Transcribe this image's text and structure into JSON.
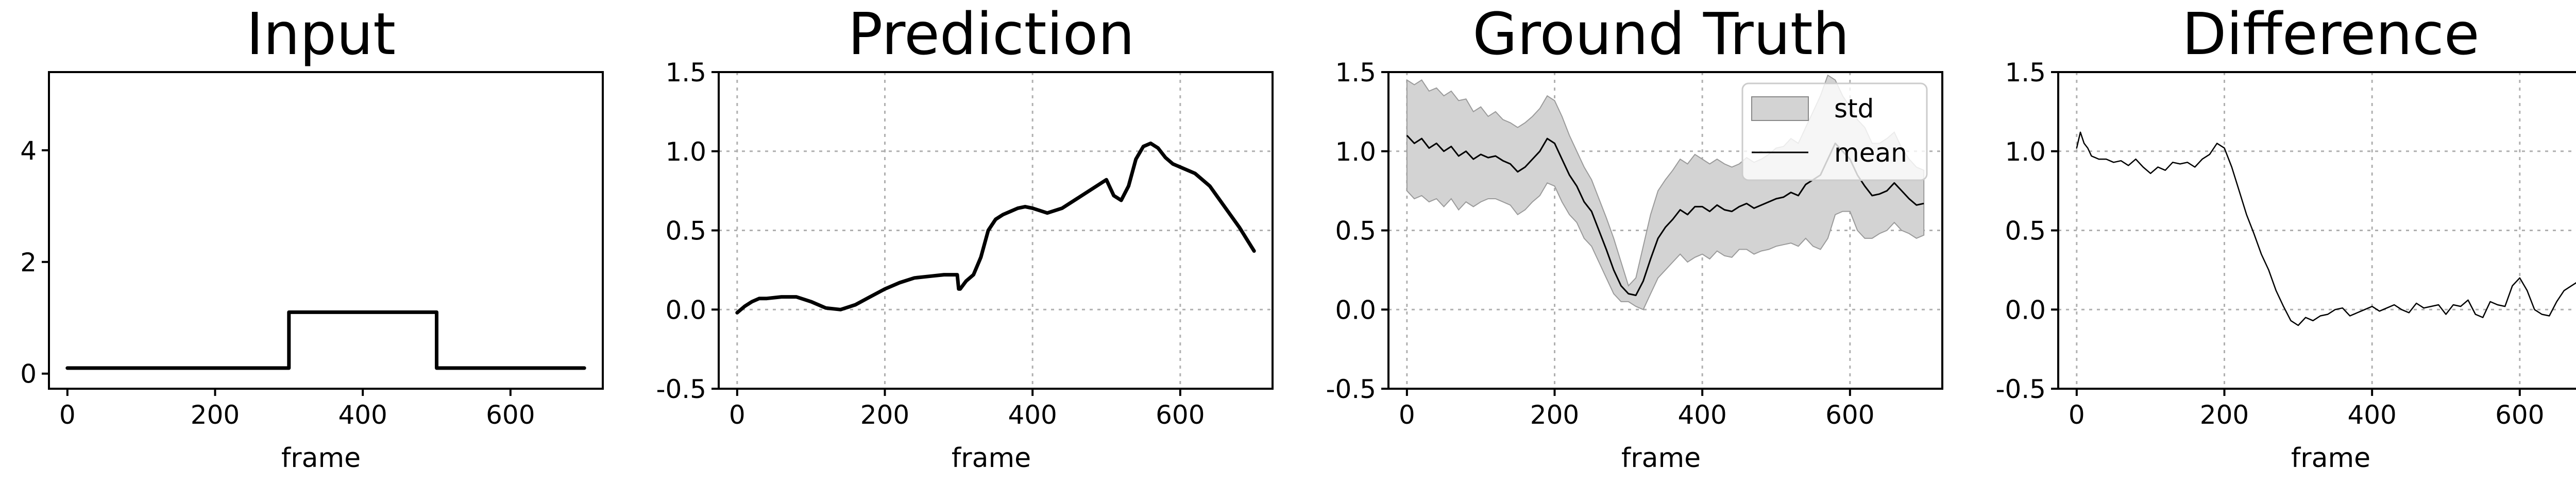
{
  "chart_data": [
    {
      "id": "input",
      "type": "line",
      "title": "Input",
      "xlabel": "frame",
      "ylabel": "",
      "xlim": [
        -25,
        725
      ],
      "ylim": [
        -0.27,
        5.4
      ],
      "grid": false,
      "xticks": [
        0,
        200,
        400,
        600
      ],
      "yticks": [
        0,
        2,
        4
      ],
      "series": [
        {
          "x": [
            0,
            300,
            300,
            500,
            500,
            700
          ],
          "y": [
            0.1,
            0.1,
            1.1,
            1.1,
            0.1,
            0.1
          ],
          "stroke_width": 7
        }
      ]
    },
    {
      "id": "prediction",
      "type": "line",
      "title": "Prediction",
      "xlabel": "frame",
      "ylabel": "",
      "xlim": [
        -25,
        725
      ],
      "ylim": [
        -0.5,
        1.5
      ],
      "grid": true,
      "xticks": [
        0,
        200,
        400,
        600
      ],
      "yticks": [
        -0.5,
        0.0,
        0.5,
        1.0,
        1.5
      ],
      "series": [
        {
          "stroke_width": 7,
          "x": [
            0,
            10,
            20,
            30,
            40,
            60,
            80,
            100,
            120,
            140,
            160,
            180,
            200,
            220,
            240,
            260,
            280,
            298,
            300,
            302,
            310,
            320,
            330,
            340,
            350,
            360,
            370,
            380,
            390,
            400,
            420,
            440,
            460,
            480,
            500,
            510,
            520,
            530,
            540,
            550,
            560,
            570,
            580,
            590,
            600,
            620,
            640,
            660,
            680,
            700
          ],
          "y": [
            -0.02,
            0.02,
            0.05,
            0.07,
            0.07,
            0.08,
            0.08,
            0.05,
            0.01,
            0.0,
            0.03,
            0.08,
            0.13,
            0.17,
            0.2,
            0.21,
            0.22,
            0.22,
            0.13,
            0.13,
            0.18,
            0.22,
            0.33,
            0.5,
            0.57,
            0.6,
            0.62,
            0.64,
            0.65,
            0.64,
            0.61,
            0.64,
            0.7,
            0.76,
            0.82,
            0.72,
            0.69,
            0.78,
            0.95,
            1.03,
            1.05,
            1.02,
            0.96,
            0.92,
            0.9,
            0.86,
            0.78,
            0.65,
            0.52,
            0.37
          ]
        }
      ]
    },
    {
      "id": "ground-truth",
      "type": "area",
      "title": "Ground Truth",
      "xlabel": "frame",
      "ylabel": "",
      "xlim": [
        -25,
        725
      ],
      "ylim": [
        -0.5,
        1.5
      ],
      "grid": true,
      "legend": "top-right",
      "xticks": [
        0,
        200,
        400,
        600
      ],
      "yticks": [
        -0.5,
        0.0,
        0.5,
        1.0,
        1.5
      ],
      "x": [
        0,
        10,
        20,
        30,
        40,
        50,
        60,
        70,
        80,
        90,
        100,
        110,
        120,
        130,
        140,
        150,
        160,
        170,
        180,
        190,
        200,
        210,
        220,
        230,
        240,
        250,
        260,
        270,
        280,
        290,
        300,
        310,
        320,
        330,
        340,
        350,
        360,
        370,
        380,
        390,
        400,
        410,
        420,
        430,
        440,
        450,
        460,
        470,
        480,
        490,
        500,
        510,
        520,
        530,
        540,
        550,
        560,
        570,
        580,
        590,
        600,
        610,
        620,
        630,
        640,
        650,
        660,
        670,
        680,
        690,
        700
      ],
      "mean": [
        1.1,
        1.05,
        1.08,
        1.02,
        1.05,
        1.0,
        1.03,
        0.97,
        1.0,
        0.95,
        0.98,
        0.96,
        0.97,
        0.94,
        0.92,
        0.87,
        0.9,
        0.95,
        1.0,
        1.08,
        1.05,
        0.95,
        0.85,
        0.78,
        0.68,
        0.62,
        0.5,
        0.38,
        0.25,
        0.15,
        0.1,
        0.09,
        0.18,
        0.32,
        0.45,
        0.52,
        0.57,
        0.63,
        0.6,
        0.65,
        0.65,
        0.62,
        0.66,
        0.63,
        0.62,
        0.65,
        0.67,
        0.64,
        0.66,
        0.68,
        0.7,
        0.71,
        0.74,
        0.72,
        0.79,
        0.82,
        0.85,
        0.95,
        1.05,
        1.0,
        0.95,
        0.85,
        0.78,
        0.72,
        0.73,
        0.75,
        0.8,
        0.75,
        0.7,
        0.66,
        0.67
      ],
      "upper": [
        1.45,
        1.42,
        1.45,
        1.38,
        1.4,
        1.35,
        1.38,
        1.32,
        1.33,
        1.25,
        1.28,
        1.22,
        1.25,
        1.2,
        1.18,
        1.15,
        1.18,
        1.22,
        1.27,
        1.35,
        1.32,
        1.22,
        1.1,
        1.0,
        0.9,
        0.82,
        0.7,
        0.58,
        0.45,
        0.3,
        0.15,
        0.2,
        0.4,
        0.6,
        0.75,
        0.82,
        0.88,
        0.95,
        0.92,
        0.98,
        0.95,
        0.92,
        0.95,
        0.92,
        0.9,
        0.92,
        0.96,
        0.93,
        0.95,
        0.98,
        1.02,
        1.03,
        1.08,
        1.05,
        1.15,
        1.25,
        1.35,
        1.48,
        1.45,
        1.35,
        1.28,
        1.2,
        1.15,
        1.05,
        1.05,
        1.08,
        1.12,
        1.02,
        0.95,
        0.9,
        0.88
      ],
      "lower": [
        0.75,
        0.7,
        0.72,
        0.68,
        0.7,
        0.65,
        0.7,
        0.63,
        0.68,
        0.65,
        0.68,
        0.7,
        0.7,
        0.68,
        0.66,
        0.6,
        0.63,
        0.68,
        0.72,
        0.8,
        0.78,
        0.68,
        0.6,
        0.55,
        0.45,
        0.4,
        0.3,
        0.2,
        0.1,
        0.05,
        0.05,
        0.02,
        0.0,
        0.1,
        0.2,
        0.25,
        0.3,
        0.35,
        0.3,
        0.33,
        0.35,
        0.32,
        0.37,
        0.34,
        0.33,
        0.38,
        0.38,
        0.35,
        0.37,
        0.38,
        0.4,
        0.41,
        0.42,
        0.4,
        0.45,
        0.4,
        0.38,
        0.45,
        0.6,
        0.62,
        0.62,
        0.5,
        0.45,
        0.45,
        0.48,
        0.5,
        0.55,
        0.5,
        0.48,
        0.45,
        0.47
      ],
      "series": [
        {
          "name": "std",
          "role": "band",
          "color": "#d3d3d3"
        },
        {
          "name": "mean",
          "role": "line",
          "color": "#000000"
        }
      ]
    },
    {
      "id": "difference",
      "type": "line",
      "title": "Difference",
      "xlabel": "frame",
      "ylabel": "",
      "xlim": [
        -25,
        725
      ],
      "ylim": [
        -0.5,
        1.5
      ],
      "grid": true,
      "xticks": [
        0,
        200,
        400,
        600
      ],
      "yticks": [
        -0.5,
        0.0,
        0.5,
        1.0,
        1.5
      ],
      "series": [
        {
          "stroke_width": 2.5,
          "x": [
            0,
            5,
            10,
            15,
            20,
            30,
            40,
            50,
            60,
            70,
            80,
            90,
            100,
            110,
            120,
            130,
            140,
            150,
            160,
            170,
            180,
            190,
            200,
            210,
            220,
            230,
            240,
            250,
            260,
            270,
            280,
            290,
            300,
            310,
            320,
            330,
            340,
            350,
            360,
            370,
            380,
            390,
            400,
            410,
            420,
            430,
            440,
            450,
            460,
            470,
            480,
            490,
            500,
            510,
            520,
            530,
            540,
            550,
            560,
            570,
            580,
            590,
            600,
            610,
            620,
            630,
            640,
            650,
            660,
            670,
            680,
            690,
            700
          ],
          "y": [
            1.02,
            1.12,
            1.05,
            1.02,
            0.97,
            0.95,
            0.95,
            0.93,
            0.94,
            0.91,
            0.95,
            0.9,
            0.86,
            0.9,
            0.88,
            0.93,
            0.92,
            0.93,
            0.9,
            0.95,
            0.98,
            1.05,
            1.02,
            0.9,
            0.75,
            0.6,
            0.48,
            0.35,
            0.25,
            0.12,
            0.02,
            -0.07,
            -0.1,
            -0.05,
            -0.07,
            -0.04,
            -0.03,
            0.0,
            0.01,
            -0.04,
            -0.02,
            0.0,
            0.02,
            -0.01,
            0.01,
            0.03,
            0.0,
            -0.02,
            0.04,
            0.01,
            0.02,
            0.03,
            -0.03,
            0.03,
            0.02,
            0.06,
            -0.03,
            -0.05,
            0.05,
            0.03,
            0.02,
            0.15,
            0.2,
            0.12,
            0.0,
            -0.03,
            -0.04,
            0.05,
            0.12,
            0.15,
            0.18,
            0.25,
            0.28
          ]
        }
      ]
    }
  ]
}
